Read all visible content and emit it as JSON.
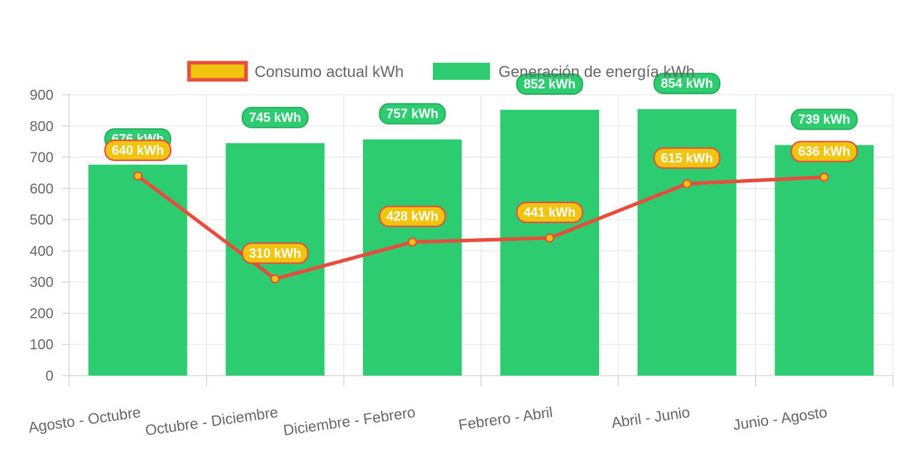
{
  "chart_data": {
    "type": "bar",
    "categories": [
      "Agosto - Octubre",
      "Octubre - Diciembre",
      "Diciembre - Febrero",
      "Febrero - Abril",
      "Abril - Junio",
      "Junio - Agosto"
    ],
    "series": [
      {
        "name": "Consumo actual kWh",
        "type": "line",
        "values": [
          640,
          310,
          428,
          441,
          615,
          636
        ],
        "labels": [
          "640 kWh",
          "310 kWh",
          "428 kWh",
          "441 kWh",
          "615 kWh",
          "636 kWh"
        ],
        "line_color": "#e74c3c",
        "fill_color": "#f1c40f"
      },
      {
        "name": "Generación de energía kWh",
        "type": "bar",
        "values": [
          676,
          745,
          757,
          852,
          854,
          739
        ],
        "labels": [
          "676 kWh",
          "745 kWh",
          "757 kWh",
          "852 kWh",
          "854 kWh",
          "739 kWh"
        ],
        "fill_color": "#2ecc71",
        "label_border_color": "#27ae60"
      }
    ],
    "y_ticks": [
      "0",
      "100",
      "200",
      "300",
      "400",
      "500",
      "600",
      "700",
      "800",
      "900"
    ],
    "ylim": [
      0,
      900
    ],
    "grid": true,
    "legend_position": "top"
  }
}
